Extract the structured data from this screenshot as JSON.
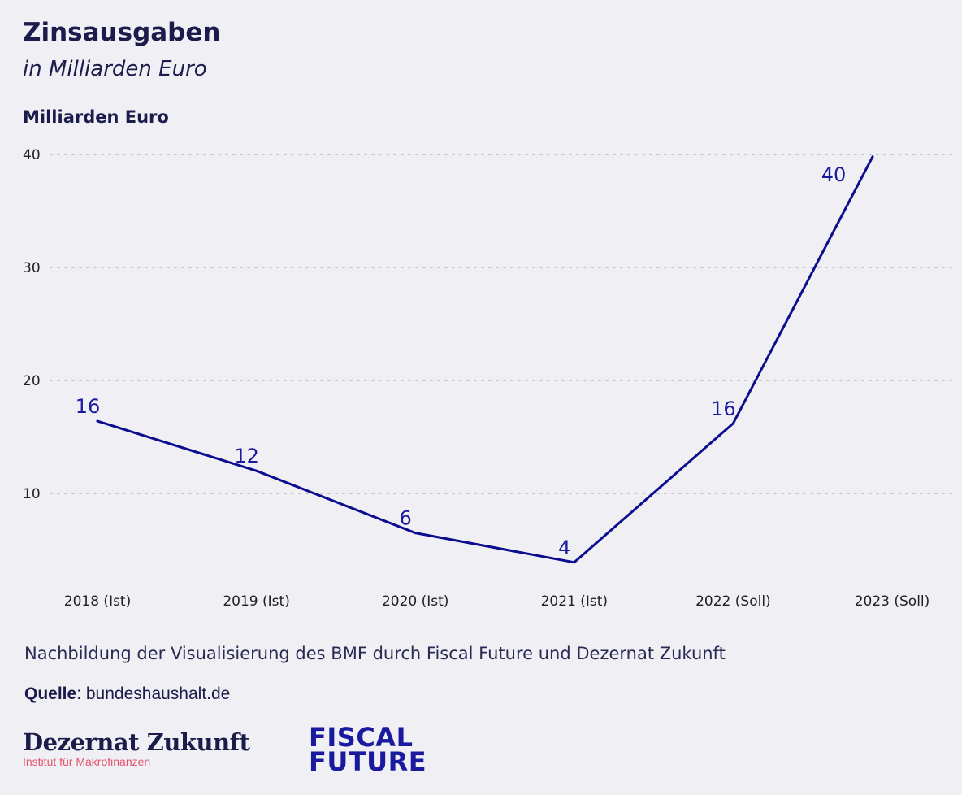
{
  "header": {
    "title": "Zinsausgaben",
    "subtitle": "in Milliarden Euro"
  },
  "chart_data": {
    "type": "line",
    "title": "Zinsausgaben",
    "subtitle": "in Milliarden Euro",
    "ylabel": "Milliarden Euro",
    "xlabel": "",
    "categories": [
      "2018 (Ist)",
      "2019 (Ist)",
      "2020 (Ist)",
      "2021 (Ist)",
      "2022 (Soll)",
      "2023 (Soll)"
    ],
    "values": [
      16.4,
      12,
      6.5,
      3.9,
      16.2,
      39.8
    ],
    "data_labels": [
      "16",
      "12",
      "6",
      "4",
      "16",
      "40"
    ],
    "yticks": [
      10,
      20,
      30,
      40
    ],
    "ylim": [
      0,
      40
    ],
    "grid": "horizontal-dotted",
    "line_color": "#0d0d8f",
    "grid_color": "#c4c4cc"
  },
  "footer": {
    "caption": "Nachbildung der Visualisierung des BMF durch Fiscal Future und Dezernat Zukunft",
    "source_label": "Quelle",
    "source_text": ": bundeshaushalt.de",
    "logo_dz_name": "Dezernat Zukunft",
    "logo_dz_sub": "Institut für Makrofinanzen",
    "logo_ff_line1": "FISCAL",
    "logo_ff_line2": "FUTURE"
  }
}
